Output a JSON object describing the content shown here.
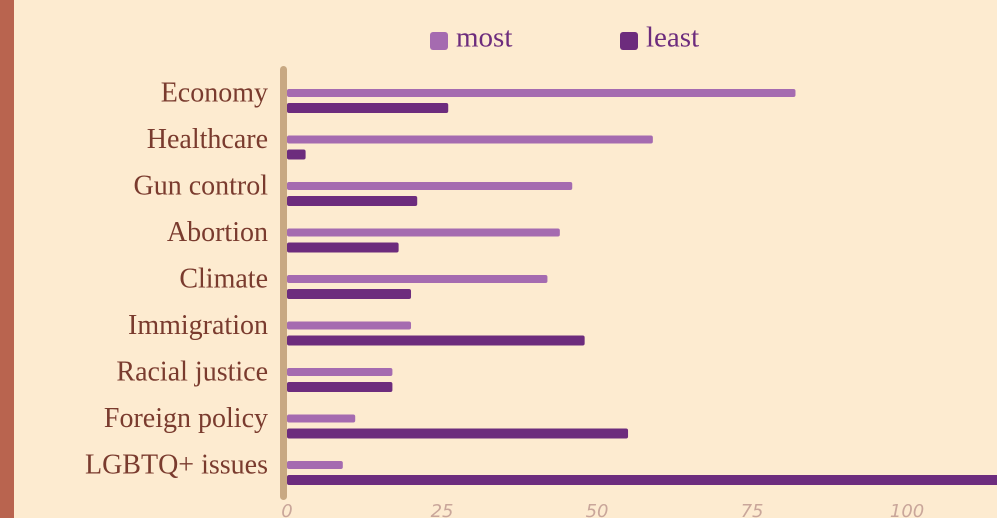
{
  "chart_data": {
    "type": "hbar",
    "categories": [
      "Economy",
      "Healthcare",
      "Gun control",
      "Abortion",
      "Climate",
      "Immigration",
      "Racial justice",
      "Foreign policy",
      "LGBTQ+ issues"
    ],
    "series": [
      {
        "name": "most",
        "color": "#a56bb0",
        "values": [
          82,
          59,
          46,
          44,
          42,
          20,
          17,
          11,
          9
        ]
      },
      {
        "name": "least",
        "color": "#6d2c7d",
        "values": [
          26,
          3,
          21,
          18,
          20,
          48,
          17,
          55,
          118
        ]
      }
    ],
    "xlim": [
      0,
      114.5
    ],
    "xticks": [
      0,
      25,
      50,
      75,
      100
    ]
  }
}
